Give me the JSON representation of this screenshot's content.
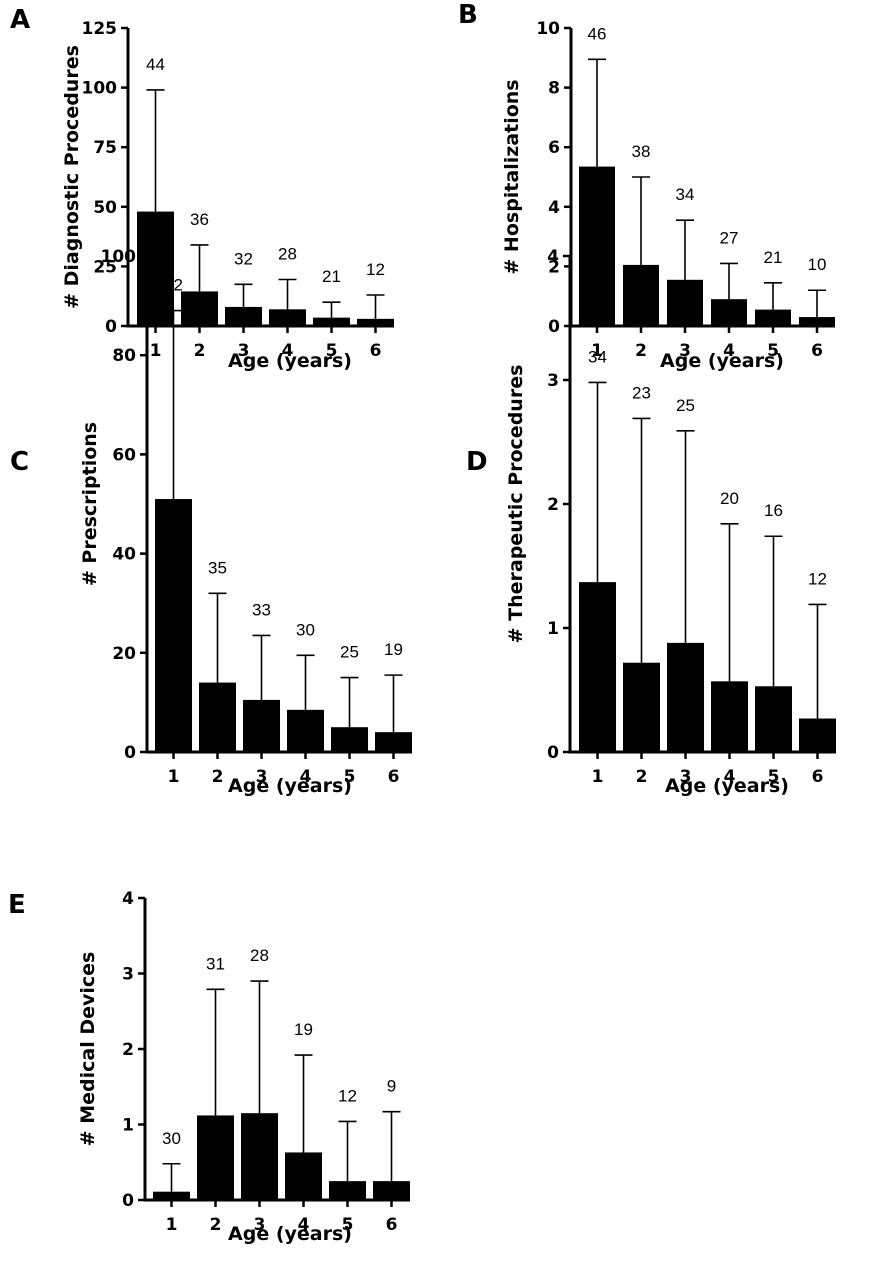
{
  "chart_data": [
    {
      "type": "bar",
      "panel": "A",
      "categories": [
        "1",
        "2",
        "3",
        "4",
        "5",
        "6"
      ],
      "values": [
        48,
        14.5,
        8,
        7,
        3.5,
        3
      ],
      "error_upper": [
        99,
        34,
        17.5,
        19.5,
        10,
        13
      ],
      "n_labels": [
        "44",
        "36",
        "32",
        "28",
        "21",
        "12"
      ],
      "xlabel": "Age  (years)",
      "ylabel": "#  Diagnostic  Procedures",
      "ylim": [
        0,
        125
      ],
      "yticks": [
        0,
        25,
        50,
        75,
        100,
        125
      ],
      "grid": false
    },
    {
      "type": "bar",
      "panel": "B",
      "categories": [
        "1",
        "2",
        "3",
        "4",
        "5",
        "6"
      ],
      "values": [
        5.35,
        2.05,
        1.55,
        0.9,
        0.55,
        0.3
      ],
      "error_upper": [
        8.95,
        5.0,
        3.55,
        2.1,
        1.45,
        1.2
      ],
      "n_labels": [
        "46",
        "38",
        "34",
        "27",
        "21",
        "10"
      ],
      "xlabel": "Age  (years)",
      "ylabel": "#  Hospitalizations",
      "ylim": [
        0,
        10
      ],
      "yticks": [
        0,
        2,
        4,
        6,
        8,
        10
      ],
      "grid": false
    },
    {
      "type": "bar",
      "panel": "C",
      "categories": [
        "1",
        "2",
        "3",
        "4",
        "5",
        "6"
      ],
      "values": [
        51,
        14,
        10.5,
        8.5,
        5,
        4
      ],
      "error_upper": [
        89,
        32,
        23.5,
        19.5,
        15,
        15.5
      ],
      "n_labels": [
        "42",
        "35",
        "33",
        "30",
        "25",
        "19"
      ],
      "xlabel": "Age  (years)",
      "ylabel": "# Prescriptions",
      "ylim": [
        0,
        100
      ],
      "yticks": [
        0,
        20,
        40,
        60,
        80,
        100
      ],
      "grid": false
    },
    {
      "type": "bar",
      "panel": "D",
      "categories": [
        "1",
        "2",
        "3",
        "4",
        "5",
        "6"
      ],
      "values": [
        1.37,
        0.72,
        0.88,
        0.57,
        0.53,
        0.27
      ],
      "error_upper": [
        2.98,
        2.69,
        2.59,
        1.84,
        1.74,
        1.19
      ],
      "n_labels": [
        "34",
        "23",
        "25",
        "20",
        "16",
        "12"
      ],
      "xlabel": "Age  (years)",
      "ylabel": "# Therapeutic Procedures",
      "ylim": [
        0,
        4
      ],
      "yticks": [
        0,
        1,
        2,
        3,
        4
      ],
      "grid": false
    },
    {
      "type": "bar",
      "panel": "E",
      "categories": [
        "1",
        "2",
        "3",
        "4",
        "5",
        "6"
      ],
      "values": [
        0.11,
        1.12,
        1.15,
        0.63,
        0.25,
        0.25
      ],
      "error_upper": [
        0.48,
        2.79,
        2.9,
        1.92,
        1.04,
        1.17
      ],
      "n_labels": [
        "30",
        "31",
        "28",
        "19",
        "12",
        "9"
      ],
      "xlabel": "Age  (years)",
      "ylabel": "# Medical Devices",
      "ylim": [
        0,
        4
      ],
      "yticks": [
        0,
        1,
        2,
        3,
        4
      ],
      "grid": false
    }
  ]
}
